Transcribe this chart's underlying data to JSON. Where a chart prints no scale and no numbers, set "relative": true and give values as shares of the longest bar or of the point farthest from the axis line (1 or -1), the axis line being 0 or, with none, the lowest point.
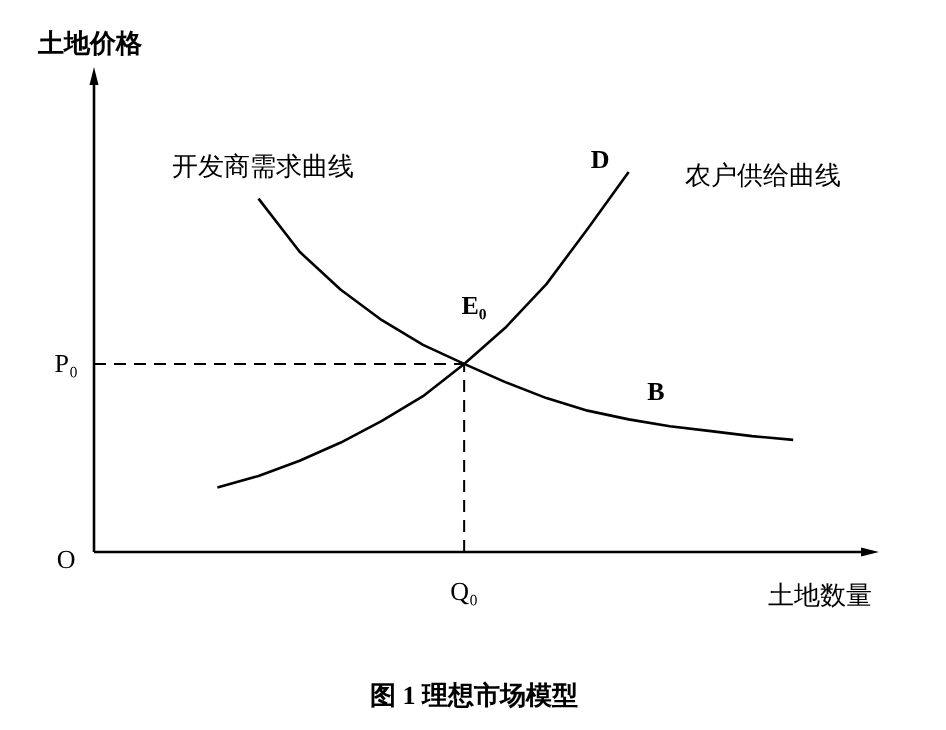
{
  "chart_data": {
    "type": "line",
    "relative": true,
    "title": "图 1   理想市场模型",
    "xlabel": "土地数量",
    "ylabel": "土地价格",
    "categories": [
      null,
      null,
      null,
      null,
      null,
      null,
      null,
      null,
      null,
      null,
      null,
      null,
      null,
      null,
      null
    ],
    "series": [
      {
        "name": "开发商需求曲线",
        "color": "#000000",
        "values": [
          null,
          0.93,
          0.79,
          0.69,
          0.61,
          0.545,
          0.495,
          0.447,
          0.405,
          0.372,
          0.349,
          0.331,
          0.318,
          0.305,
          0.295
        ]
      },
      {
        "name": "农户供给曲线",
        "color": "#000000",
        "values": [
          0.17,
          0.2,
          0.24,
          0.288,
          0.345,
          0.41,
          0.495,
          0.59,
          0.705,
          0.85,
          1,
          null,
          null,
          null,
          null
        ]
      }
    ],
    "ref_lines": [
      {
        "axis": "y",
        "value": 0.495,
        "label": "P₀",
        "line_style": "dashed"
      }
    ],
    "annotations": [
      "D",
      "B",
      "E₀",
      "O",
      "Q₀"
    ]
  }
}
